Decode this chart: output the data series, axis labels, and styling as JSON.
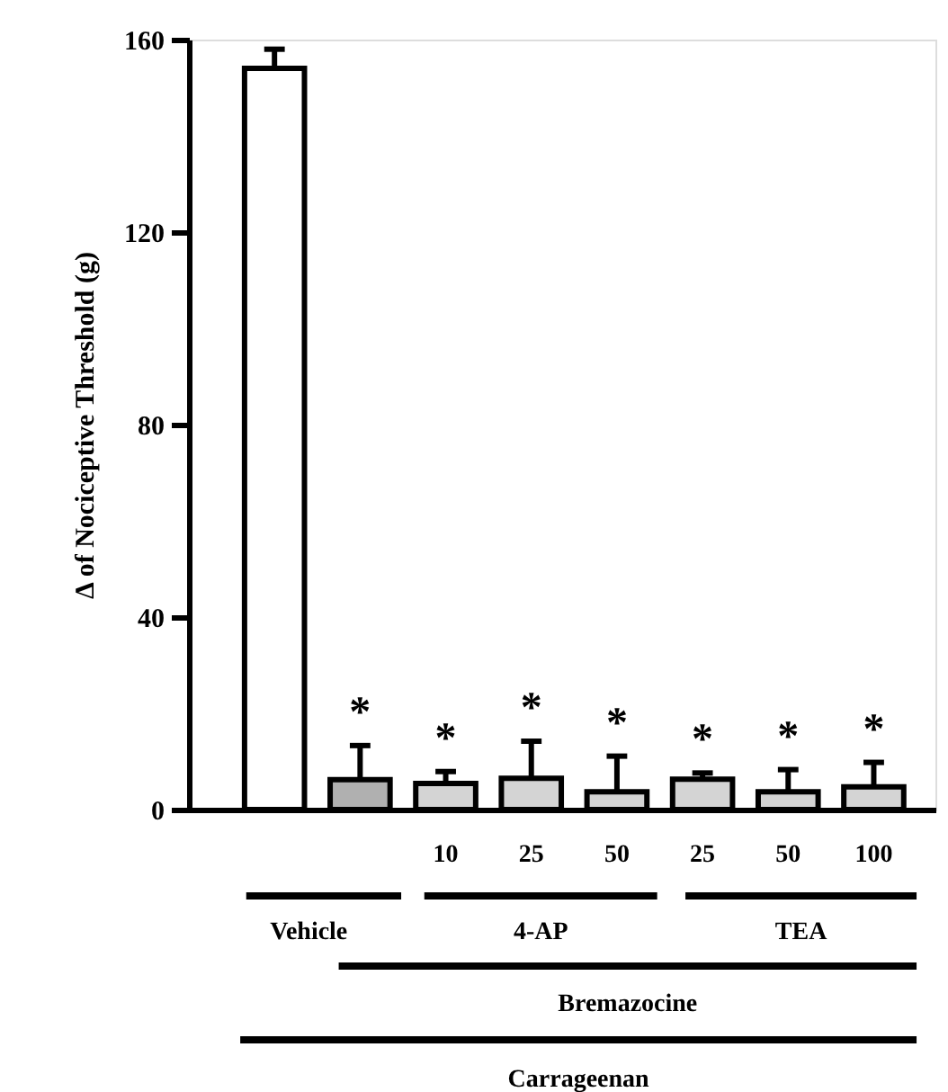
{
  "chart_data": {
    "type": "bar",
    "ylabel": "Δ of Nociceptive Threshold (g)",
    "categories": [
      null,
      null,
      "10",
      "25",
      "50",
      "25",
      "50",
      "100"
    ],
    "values": [
      154,
      6.2,
      5.4,
      6.5,
      3.7,
      6.3,
      3.7,
      4.7
    ],
    "errors": [
      [
        154,
        158
      ],
      [
        6.2,
        13.3
      ],
      [
        5.4,
        7.9
      ],
      [
        6.5,
        14.2
      ],
      [
        3.7,
        11.1
      ],
      [
        6.3,
        7.6
      ],
      [
        3.7,
        8.3
      ],
      [
        4.7,
        9.8
      ]
    ],
    "colors": [
      "#ffffff",
      "#b0b0b0",
      "#d4d4d4",
      "#d4d4d4",
      "#d4d4d4",
      "#d4d4d4",
      "#d4d4d4",
      "#d4d4d4"
    ],
    "value_labels": [
      null,
      "*",
      "*",
      "*",
      "*",
      "*",
      "*",
      "*"
    ],
    "ylim": [
      0,
      160
    ],
    "yticks": [
      0,
      40,
      80,
      120,
      160
    ],
    "grid": false,
    "annotations": [
      "Vehicle",
      "4-AP",
      "TEA",
      "Bremazocine",
      "Carrageenan"
    ]
  }
}
